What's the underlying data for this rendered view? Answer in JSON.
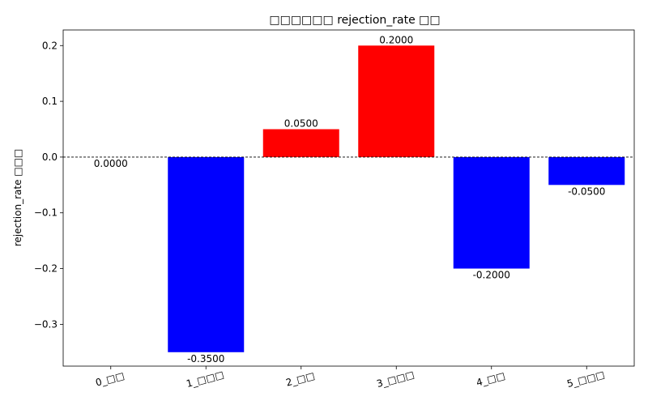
{
  "chart_data": {
    "type": "bar",
    "title": "□□□□□□ rejection_rate □□",
    "ylabel": "rejection_rate □□□",
    "xlabel": "",
    "categories": [
      "0_□□",
      "1_□□□",
      "2_□□",
      "3_□□□",
      "4_□□",
      "5_□□□"
    ],
    "values": [
      0.0,
      -0.35,
      0.05,
      0.2,
      -0.2,
      -0.05
    ],
    "value_labels": [
      "0.0000",
      "-0.3500",
      "0.0500",
      "0.2000",
      "-0.2000",
      "-0.0500"
    ],
    "ylim": [
      -0.375,
      0.228
    ],
    "yticks": [
      -0.3,
      -0.2,
      -0.1,
      0.0,
      0.1,
      0.2
    ],
    "ytick_labels": [
      "−0.3",
      "−0.2",
      "−0.1",
      "0.0",
      "0.1",
      "0.2"
    ],
    "grid": false,
    "reference_line": 0,
    "colors": {
      "positive": "#ff0000",
      "negative": "#0000ff",
      "zero_line": "#000000"
    }
  }
}
